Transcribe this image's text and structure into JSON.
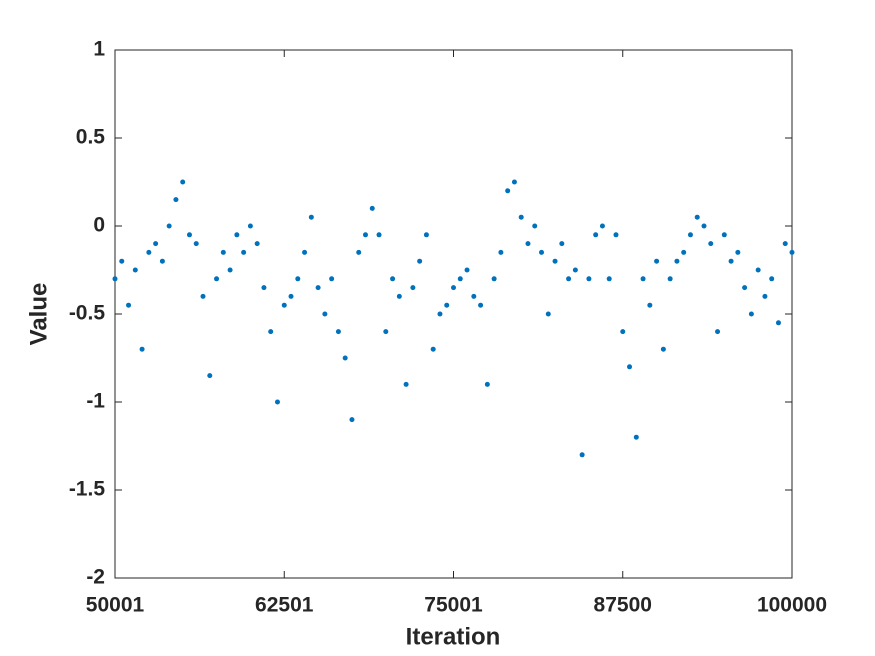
{
  "chart_data": {
    "type": "scatter",
    "x_label": "Iteration",
    "y_label": "Value",
    "color": "#0072bd",
    "xlim": [
      50001,
      100000
    ],
    "xticks": [
      50001,
      62501,
      75001,
      87500,
      100000
    ],
    "ylim": [
      -2,
      1
    ],
    "yticks": [
      -2,
      -1.5,
      -1,
      -0.5,
      0,
      0.5,
      1
    ],
    "x": [
      50001,
      50501,
      51001,
      51501,
      52001,
      52501,
      53001,
      53501,
      54001,
      54501,
      55001,
      55501,
      56001,
      56501,
      57001,
      57501,
      58001,
      58501,
      59001,
      59501,
      60001,
      60501,
      61001,
      61501,
      62001,
      62501,
      63001,
      63501,
      64001,
      64501,
      65001,
      65501,
      66001,
      66501,
      67001,
      67501,
      68001,
      68501,
      69001,
      69501,
      70001,
      70501,
      71001,
      71501,
      72001,
      72501,
      73001,
      73501,
      74001,
      74501,
      75001,
      75501,
      76001,
      76501,
      77001,
      77501,
      78001,
      78501,
      79001,
      79501,
      80001,
      80501,
      81001,
      81501,
      82001,
      82501,
      83001,
      83501,
      84001,
      84501,
      85001,
      85501,
      86001,
      86501,
      87001,
      87501,
      88001,
      88501,
      89001,
      89501,
      90001,
      90501,
      91001,
      91501,
      92001,
      92501,
      93001,
      93501,
      94001,
      94501,
      95001,
      95501,
      96001,
      96501,
      97001,
      97501,
      98001,
      98501,
      99001,
      99501,
      100000
    ],
    "values": [
      -0.3,
      -0.2,
      -0.45,
      -0.25,
      -0.7,
      -0.15,
      -0.1,
      -0.2,
      0.0,
      0.15,
      0.25,
      -0.05,
      -0.1,
      -0.4,
      -0.85,
      -0.3,
      -0.15,
      -0.25,
      -0.05,
      -0.15,
      0.0,
      -0.1,
      -0.35,
      -0.6,
      -1.0,
      -0.45,
      -0.4,
      -0.3,
      -0.15,
      0.05,
      -0.35,
      -0.5,
      -0.3,
      -0.6,
      -0.75,
      -1.1,
      -0.15,
      -0.05,
      0.1,
      -0.05,
      -0.6,
      -0.3,
      -0.4,
      -0.9,
      -0.35,
      -0.2,
      -0.05,
      -0.7,
      -0.5,
      -0.45,
      -0.35,
      -0.3,
      -0.25,
      -0.4,
      -0.45,
      -0.9,
      -0.3,
      -0.15,
      0.2,
      0.25,
      0.05,
      -0.1,
      0.0,
      -0.15,
      -0.5,
      -0.2,
      -0.1,
      -0.3,
      -0.25,
      -1.3,
      -0.3,
      -0.05,
      0.0,
      -0.3,
      -0.05,
      -0.6,
      -0.8,
      -1.2,
      -0.3,
      -0.45,
      -0.2,
      -0.7,
      -0.3,
      -0.2,
      -0.15,
      -0.05,
      0.05,
      0.0,
      -0.1,
      -0.6,
      -0.05,
      -0.2,
      -0.15,
      -0.35,
      -0.5,
      -0.25,
      -0.4,
      -0.3,
      -0.55,
      -0.1,
      -0.15
    ]
  }
}
